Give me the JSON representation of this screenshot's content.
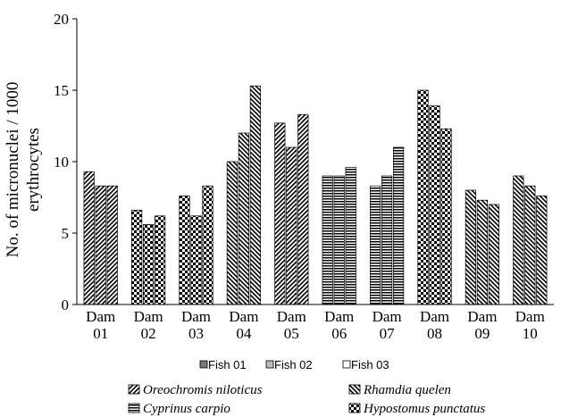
{
  "chart_data": {
    "type": "bar",
    "ylabel_line1": "No. of micronuclei / 1000",
    "ylabel_line2": "erythrocytes",
    "ylim": [
      0,
      20
    ],
    "yticks": [
      "0",
      "5",
      "10",
      "15",
      "20"
    ],
    "categories": [
      {
        "line1": "Dam",
        "line2": "01"
      },
      {
        "line1": "Dam",
        "line2": "02"
      },
      {
        "line1": "Dam",
        "line2": "03"
      },
      {
        "line1": "Dam",
        "line2": "04"
      },
      {
        "line1": "Dam",
        "line2": "05"
      },
      {
        "line1": "Dam",
        "line2": "06"
      },
      {
        "line1": "Dam",
        "line2": "07"
      },
      {
        "line1": "Dam",
        "line2": "08"
      },
      {
        "line1": "Dam",
        "line2": "09"
      },
      {
        "line1": "Dam",
        "line2": "10"
      }
    ],
    "category_species": [
      "Oreochromis niloticus",
      "Hypostomus punctatus",
      "Hypostomus punctatus",
      "Rhamdia quelen",
      "Oreochromis niloticus",
      "Cyprinus carpio",
      "Cyprinus carpio",
      "Hypostomus punctatus",
      "Rhamdia quelen",
      "Rhamdia quelen"
    ],
    "series": [
      {
        "name": "Fish 01",
        "values": [
          9.3,
          6.6,
          7.6,
          10.0,
          12.7,
          9.0,
          8.3,
          15.0,
          8.0,
          9.0
        ]
      },
      {
        "name": "Fish 02",
        "values": [
          8.3,
          5.6,
          6.2,
          12.0,
          11.0,
          9.0,
          9.0,
          13.9,
          7.3,
          8.3
        ]
      },
      {
        "name": "Fish 03",
        "values": [
          8.3,
          6.2,
          8.3,
          15.3,
          13.3,
          9.6,
          11.0,
          12.3,
          7.0,
          7.6
        ]
      }
    ],
    "legend_fish": [
      "Fish 01",
      "Fish 02",
      "Fish 03"
    ],
    "legend_species": [
      "Oreochromis niloticus",
      "Rhamdia quelen",
      "Cyprinus carpio",
      "Hypostomus punctatus"
    ],
    "grid": false,
    "legend_position": "bottom"
  }
}
